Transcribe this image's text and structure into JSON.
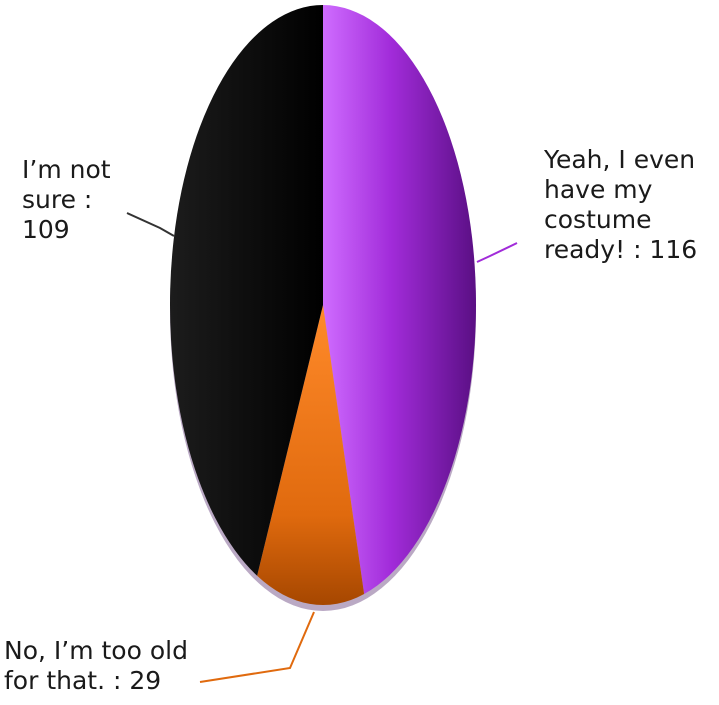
{
  "chart_data": {
    "type": "pie",
    "title": "",
    "slices": [
      {
        "label": "Yeah, I even have my costume ready!",
        "value": 116,
        "display_lines": [
          "Yeah, I even",
          "have my",
          "costume",
          "ready! : 116"
        ],
        "color": "#a12bd9",
        "highlight": "#cf6cff",
        "shade": "#5a0f84"
      },
      {
        "label": "No, I'm too old for that.",
        "value": 29,
        "display_lines": [
          "No, I’m too old",
          "for that. : 29"
        ],
        "color": "#e06a0e",
        "highlight": "#ff8a2a",
        "shade": "#a64700"
      },
      {
        "label": "I'm not sure",
        "value": 109,
        "display_lines": [
          "I’m not",
          "sure :",
          "109"
        ],
        "color": "#000000",
        "highlight": "#1c1c1c",
        "shade": "#000000"
      }
    ],
    "legend": "none",
    "labels_placement": "outside-with-leader-lines"
  }
}
